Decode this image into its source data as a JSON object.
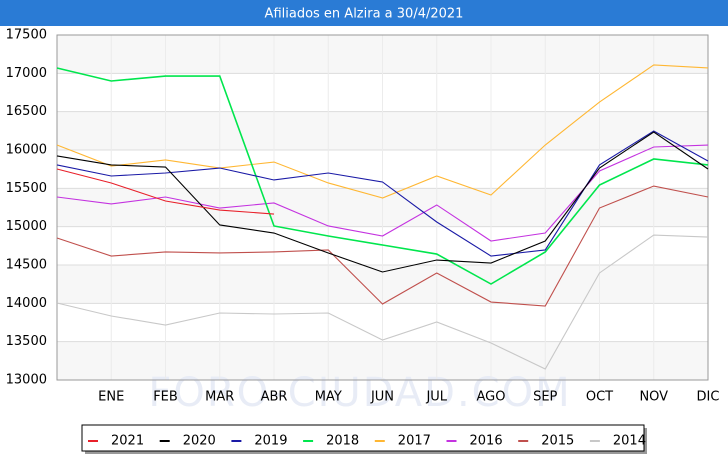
{
  "chart_data": {
    "type": "line",
    "title": "Afiliados en Alzira a 30/4/2021",
    "watermark": "FORO-CIUDAD.COM",
    "categories": [
      null,
      "ENE",
      "FEB",
      "MAR",
      "ABR",
      "MAY",
      "JUN",
      "JUL",
      "AGO",
      "SEP",
      "OCT",
      "NOV",
      "DIC"
    ],
    "ylim": [
      13000,
      17500
    ],
    "yticks": [
      13000,
      13500,
      14000,
      14500,
      15000,
      15500,
      16000,
      16500,
      17000,
      17500
    ],
    "grid": true,
    "legend": "bottom",
    "series": [
      {
        "name": "2021",
        "color": "#e8202a",
        "values": [
          15752,
          15570,
          15335,
          15217,
          15165,
          null,
          null,
          null,
          null,
          null,
          null,
          null,
          null
        ]
      },
      {
        "name": "2020",
        "color": "#000000",
        "values": [
          15922,
          15805,
          15778,
          15022,
          14917,
          14657,
          14409,
          14565,
          14526,
          14813,
          15765,
          16235,
          15752
        ]
      },
      {
        "name": "2019",
        "color": "#1a1aa6",
        "values": [
          15805,
          15661,
          15700,
          15765,
          15609,
          15700,
          15583,
          15061,
          14617,
          14696,
          15805,
          16248,
          15857
        ]
      },
      {
        "name": "2018",
        "color": "#00e64d",
        "values": [
          17070,
          16900,
          16965,
          16965,
          15009,
          14878,
          14761,
          14643,
          14252,
          14670,
          15543,
          15883,
          15805
        ]
      },
      {
        "name": "2017",
        "color": "#ffb733",
        "values": [
          16065,
          15791,
          15870,
          15765,
          15843,
          15570,
          15374,
          15661,
          15413,
          16065,
          16626,
          17109,
          17070
        ]
      },
      {
        "name": "2016",
        "color": "#c433e0",
        "values": [
          15387,
          15296,
          15387,
          15243,
          15309,
          15009,
          14878,
          15283,
          14813,
          14917,
          15726,
          16039,
          16065
        ]
      },
      {
        "name": "2015",
        "color": "#c0504d",
        "values": [
          14852,
          14617,
          14670,
          14657,
          14670,
          14696,
          13991,
          14396,
          14017,
          13965,
          15243,
          15530,
          15387
        ]
      },
      {
        "name": "2014",
        "color": "#c8c8c8",
        "values": [
          14004,
          13835,
          13717,
          13874,
          13861,
          13874,
          13522,
          13757,
          13483,
          13143,
          14396,
          14891,
          14865
        ]
      }
    ]
  }
}
